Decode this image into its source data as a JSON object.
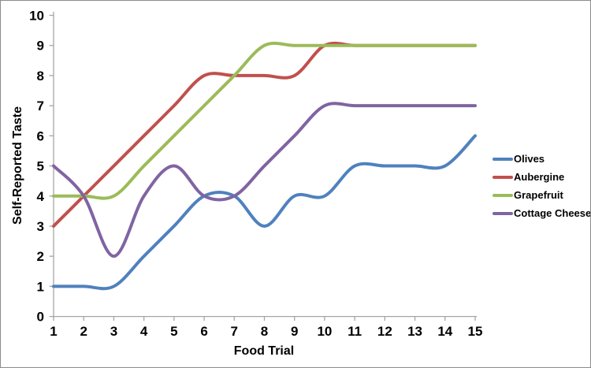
{
  "chart_data": {
    "type": "line",
    "title": "",
    "xlabel": "Food Trial",
    "ylabel": "Self-Reported Taste",
    "x": [
      1,
      2,
      3,
      4,
      5,
      6,
      7,
      8,
      9,
      10,
      11,
      12,
      13,
      14,
      15
    ],
    "x_ticks": [
      "1",
      "2",
      "3",
      "4",
      "5",
      "6",
      "7",
      "8",
      "9",
      "10",
      "11",
      "12",
      "13",
      "14",
      "15"
    ],
    "y_ticks": [
      "0",
      "1",
      "2",
      "3",
      "4",
      "5",
      "6",
      "7",
      "8",
      "9",
      "10"
    ],
    "xlim": [
      1,
      15
    ],
    "ylim": [
      0,
      10
    ],
    "grid": false,
    "smooth_lines": true,
    "line_width": 4,
    "legend_position": "right",
    "series": [
      {
        "name": "Olives",
        "color": "#4F81BD",
        "values": [
          1,
          1,
          1,
          2,
          3,
          4,
          4,
          3,
          4,
          4,
          5,
          5,
          5,
          5,
          6
        ]
      },
      {
        "name": "Aubergine",
        "color": "#C0504D",
        "values": [
          3,
          4,
          5,
          6,
          7,
          8,
          8,
          8,
          8,
          9,
          9,
          9,
          9,
          9,
          9
        ]
      },
      {
        "name": "Grapefruit",
        "color": "#9BBB59",
        "values": [
          4,
          4,
          4,
          5,
          6,
          7,
          8,
          9,
          9,
          9,
          9,
          9,
          9,
          9,
          9
        ]
      },
      {
        "name": "Cottage Cheese",
        "color": "#8064A2",
        "values": [
          5,
          4,
          2,
          4,
          5,
          4,
          4,
          5,
          6,
          7,
          7,
          7,
          7,
          7,
          7
        ]
      }
    ]
  },
  "colors": {
    "axis": "#A6A6A6",
    "text": "#000000",
    "border": "#8C8C8C",
    "background": "#FFFFFF"
  }
}
